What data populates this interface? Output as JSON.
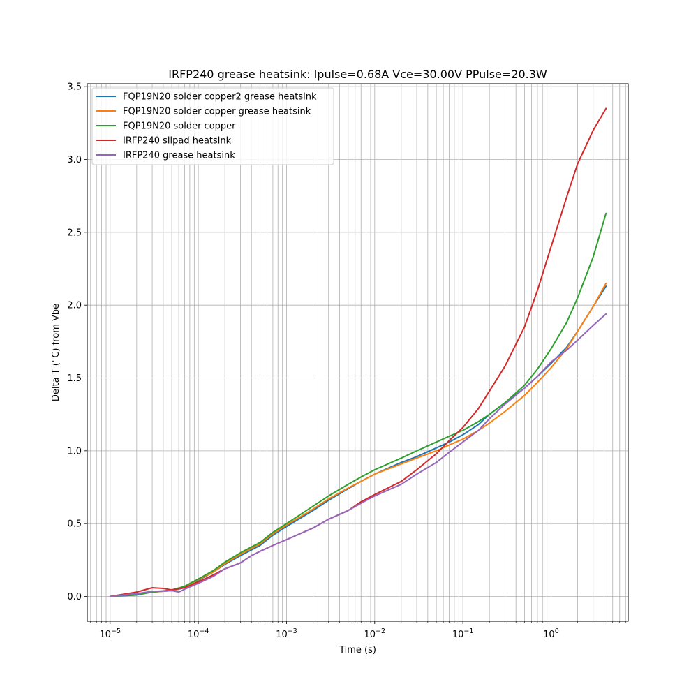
{
  "chart_data": {
    "type": "line",
    "title": "IRFP240 grease heatsink: Ipulse=0.68A Vce=30.00V PPulse=20.3W",
    "xlabel": "Time (s)",
    "ylabel": "Delta T (°C) from Vbe",
    "x_scale": "log",
    "xlim": [
      5.5e-06,
      7.5
    ],
    "ylim": [
      -0.17,
      3.52
    ],
    "x_ticks": [
      {
        "value": 1e-05,
        "base": "10",
        "exp": "−5"
      },
      {
        "value": 0.0001,
        "base": "10",
        "exp": "−4"
      },
      {
        "value": 0.001,
        "base": "10",
        "exp": "−3"
      },
      {
        "value": 0.01,
        "base": "10",
        "exp": "−2"
      },
      {
        "value": 0.1,
        "base": "10",
        "exp": "−1"
      },
      {
        "value": 1,
        "base": "10",
        "exp": "0"
      }
    ],
    "y_ticks": [
      "0.0",
      "0.5",
      "1.0",
      "1.5",
      "2.0",
      "2.5",
      "3.0",
      "3.5"
    ],
    "grid": true,
    "legend_position": "top-left",
    "series": [
      {
        "name": "FQP19N20 solder copper2 grease heatsink",
        "color": "#1f77b4",
        "points": [
          [
            1e-05,
            0.0
          ],
          [
            2e-05,
            0.01
          ],
          [
            3e-05,
            0.03
          ],
          [
            5e-05,
            0.04
          ],
          [
            7e-05,
            0.06
          ],
          [
            0.0001,
            0.11
          ],
          [
            0.00015,
            0.17
          ],
          [
            0.0002,
            0.22
          ],
          [
            0.0003,
            0.28
          ],
          [
            0.0005,
            0.35
          ],
          [
            0.0007,
            0.42
          ],
          [
            0.001,
            0.48
          ],
          [
            0.002,
            0.59
          ],
          [
            0.003,
            0.66
          ],
          [
            0.005,
            0.74
          ],
          [
            0.007,
            0.79
          ],
          [
            0.01,
            0.84
          ],
          [
            0.02,
            0.92
          ],
          [
            0.03,
            0.96
          ],
          [
            0.05,
            1.02
          ],
          [
            0.07,
            1.06
          ],
          [
            0.1,
            1.11
          ],
          [
            0.15,
            1.18
          ],
          [
            0.2,
            1.25
          ],
          [
            0.3,
            1.33
          ],
          [
            0.5,
            1.43
          ],
          [
            0.7,
            1.51
          ],
          [
            1.0,
            1.6
          ],
          [
            1.5,
            1.71
          ],
          [
            2.0,
            1.82
          ],
          [
            3.0,
            1.99
          ],
          [
            4.2,
            2.13
          ]
        ]
      },
      {
        "name": "FQP19N20 solder copper grease heatsink",
        "color": "#ff7f0e",
        "points": [
          [
            1e-05,
            0.0
          ],
          [
            2e-05,
            0.015
          ],
          [
            3e-05,
            0.03
          ],
          [
            5e-05,
            0.04
          ],
          [
            7e-05,
            0.065
          ],
          [
            0.0001,
            0.115
          ],
          [
            0.00015,
            0.17
          ],
          [
            0.0002,
            0.225
          ],
          [
            0.0003,
            0.29
          ],
          [
            0.0005,
            0.36
          ],
          [
            0.0007,
            0.43
          ],
          [
            0.001,
            0.49
          ],
          [
            0.002,
            0.6
          ],
          [
            0.003,
            0.67
          ],
          [
            0.005,
            0.745
          ],
          [
            0.007,
            0.79
          ],
          [
            0.01,
            0.84
          ],
          [
            0.02,
            0.91
          ],
          [
            0.03,
            0.95
          ],
          [
            0.05,
            1.0
          ],
          [
            0.07,
            1.04
          ],
          [
            0.1,
            1.08
          ],
          [
            0.15,
            1.14
          ],
          [
            0.2,
            1.19
          ],
          [
            0.3,
            1.27
          ],
          [
            0.5,
            1.38
          ],
          [
            0.7,
            1.47
          ],
          [
            1.0,
            1.57
          ],
          [
            1.5,
            1.7
          ],
          [
            2.0,
            1.82
          ],
          [
            3.0,
            1.99
          ],
          [
            4.2,
            2.15
          ]
        ]
      },
      {
        "name": "FQP19N20 solder copper",
        "color": "#2ca02c",
        "points": [
          [
            1e-05,
            0.0
          ],
          [
            2e-05,
            0.015
          ],
          [
            3e-05,
            0.03
          ],
          [
            5e-05,
            0.045
          ],
          [
            7e-05,
            0.07
          ],
          [
            0.0001,
            0.12
          ],
          [
            0.00015,
            0.18
          ],
          [
            0.0002,
            0.235
          ],
          [
            0.0003,
            0.3
          ],
          [
            0.0005,
            0.37
          ],
          [
            0.0007,
            0.44
          ],
          [
            0.001,
            0.5
          ],
          [
            0.002,
            0.62
          ],
          [
            0.003,
            0.69
          ],
          [
            0.005,
            0.77
          ],
          [
            0.007,
            0.82
          ],
          [
            0.01,
            0.87
          ],
          [
            0.02,
            0.95
          ],
          [
            0.03,
            1.0
          ],
          [
            0.05,
            1.06
          ],
          [
            0.07,
            1.1
          ],
          [
            0.1,
            1.14
          ],
          [
            0.15,
            1.2
          ],
          [
            0.2,
            1.25
          ],
          [
            0.3,
            1.33
          ],
          [
            0.5,
            1.45
          ],
          [
            0.7,
            1.56
          ],
          [
            1.0,
            1.7
          ],
          [
            1.5,
            1.88
          ],
          [
            2.0,
            2.05
          ],
          [
            3.0,
            2.33
          ],
          [
            4.2,
            2.63
          ]
        ]
      },
      {
        "name": "IRFP240 silpad heatsink",
        "color": "#d62728",
        "points": [
          [
            1e-05,
            0.0
          ],
          [
            2e-05,
            0.03
          ],
          [
            3e-05,
            0.06
          ],
          [
            4e-05,
            0.055
          ],
          [
            5e-05,
            0.045
          ],
          [
            7e-05,
            0.06
          ],
          [
            0.0001,
            0.1
          ],
          [
            0.00015,
            0.15
          ],
          [
            0.0002,
            0.19
          ],
          [
            0.0003,
            0.23
          ],
          [
            0.0004,
            0.28
          ],
          [
            0.0005,
            0.31
          ],
          [
            0.0007,
            0.35
          ],
          [
            0.001,
            0.39
          ],
          [
            0.002,
            0.47
          ],
          [
            0.003,
            0.53
          ],
          [
            0.005,
            0.59
          ],
          [
            0.007,
            0.65
          ],
          [
            0.01,
            0.7
          ],
          [
            0.02,
            0.79
          ],
          [
            0.03,
            0.87
          ],
          [
            0.05,
            0.98
          ],
          [
            0.07,
            1.07
          ],
          [
            0.1,
            1.16
          ],
          [
            0.15,
            1.29
          ],
          [
            0.2,
            1.41
          ],
          [
            0.3,
            1.58
          ],
          [
            0.5,
            1.85
          ],
          [
            0.7,
            2.1
          ],
          [
            1.0,
            2.4
          ],
          [
            1.5,
            2.74
          ],
          [
            2.0,
            2.97
          ],
          [
            3.0,
            3.2
          ],
          [
            4.2,
            3.35
          ]
        ]
      },
      {
        "name": "IRFP240 grease heatsink",
        "color": "#9467bd",
        "points": [
          [
            1e-05,
            0.0
          ],
          [
            2e-05,
            0.02
          ],
          [
            3e-05,
            0.035
          ],
          [
            5e-05,
            0.04
          ],
          [
            6e-05,
            0.03
          ],
          [
            7e-05,
            0.05
          ],
          [
            0.0001,
            0.09
          ],
          [
            0.00015,
            0.14
          ],
          [
            0.0002,
            0.19
          ],
          [
            0.0003,
            0.23
          ],
          [
            0.0004,
            0.28
          ],
          [
            0.0005,
            0.31
          ],
          [
            0.0007,
            0.35
          ],
          [
            0.001,
            0.39
          ],
          [
            0.002,
            0.47
          ],
          [
            0.003,
            0.53
          ],
          [
            0.005,
            0.59
          ],
          [
            0.007,
            0.64
          ],
          [
            0.01,
            0.69
          ],
          [
            0.02,
            0.77
          ],
          [
            0.03,
            0.84
          ],
          [
            0.05,
            0.92
          ],
          [
            0.07,
            0.99
          ],
          [
            0.1,
            1.06
          ],
          [
            0.15,
            1.14
          ],
          [
            0.2,
            1.22
          ],
          [
            0.3,
            1.32
          ],
          [
            0.5,
            1.43
          ],
          [
            0.7,
            1.51
          ],
          [
            1.0,
            1.61
          ],
          [
            1.5,
            1.69
          ],
          [
            2.0,
            1.76
          ],
          [
            3.0,
            1.86
          ],
          [
            4.2,
            1.94
          ]
        ]
      }
    ]
  }
}
